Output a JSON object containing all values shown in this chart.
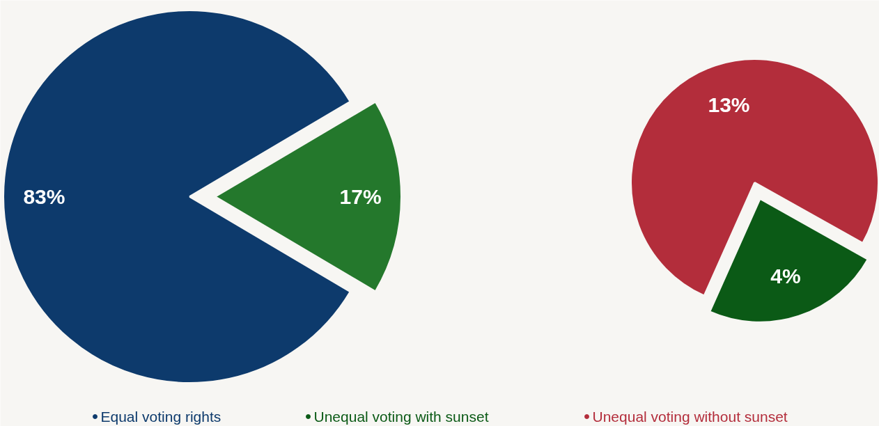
{
  "chart_data": [
    {
      "type": "pie",
      "categories": [
        "Equal voting rights",
        null
      ],
      "values": [
        83,
        17
      ],
      "colors": [
        "#0d3a6c",
        "#24782c"
      ],
      "value_labels": [
        "83%",
        "17%"
      ],
      "legend": "bottom"
    },
    {
      "type": "pie",
      "categories": [
        "Unequal voting with sunset",
        "Unequal voting without sunset"
      ],
      "values": [
        4,
        13
      ],
      "colors": [
        "#0b5a16",
        "#b32d3b"
      ],
      "value_labels": [
        "4%",
        "13%"
      ],
      "legend": "bottom"
    }
  ]
}
